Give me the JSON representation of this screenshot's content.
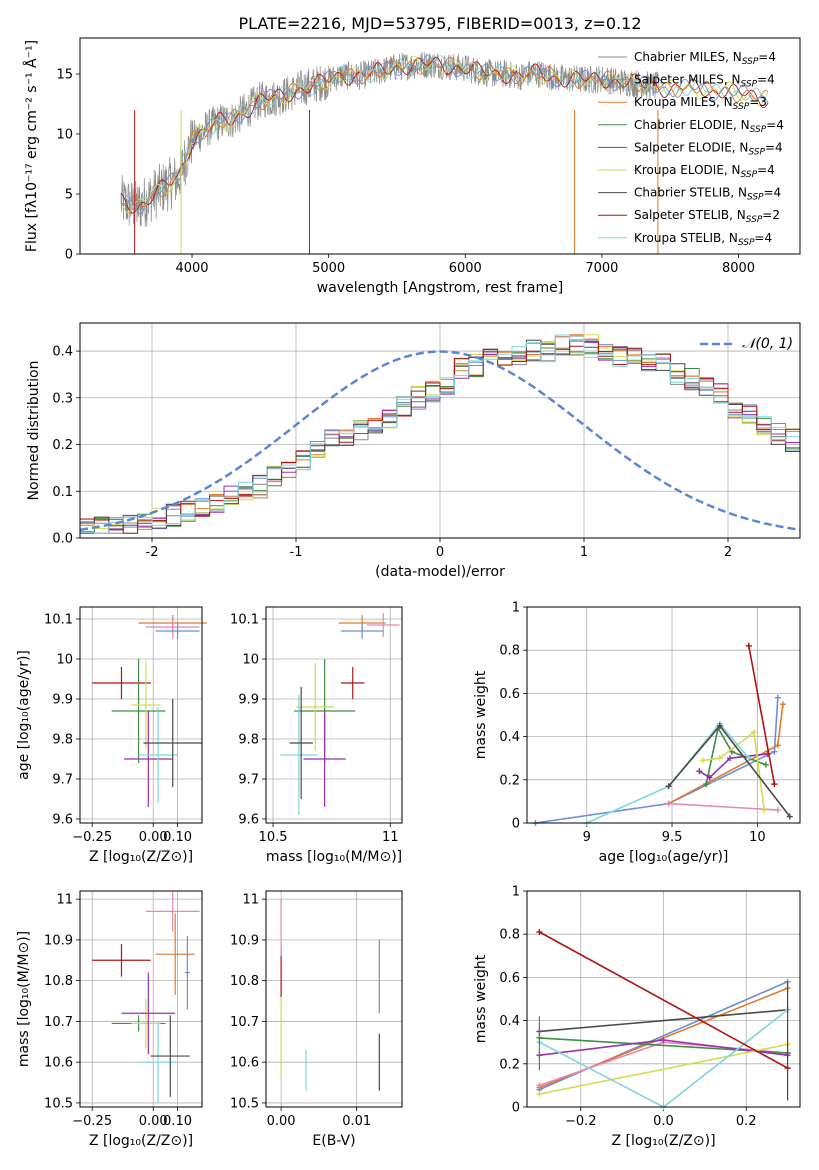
{
  "figure": {
    "title": "PLATE=2216, MJD=53795, FIBERID=0013, z=0.12"
  },
  "colors": {
    "Chabrier MILES": "#8a8a8a",
    "Salpeter MILES": "#6a8fd8",
    "Kroupa MILES": "#e07a2f",
    "Chabrier ELODIE": "#3f8f46",
    "Salpeter ELODIE": "#9a2fb0",
    "Kroupa ELODIE": "#d2dd4f",
    "Chabrier STELIB": "#4a4a4a",
    "Salpeter STELIB": "#b01414",
    "Kroupa STELIB": "#7fd6dc",
    "pink": "#e588b8",
    "normal": "#5b87d2"
  },
  "chart_data": [
    {
      "id": "spectrum",
      "type": "line",
      "title": "PLATE=2216, MJD=53795, FIBERID=0013, z=0.12",
      "xlabel": "wavelength [Angstrom, rest frame]",
      "ylabel": "Flux [fλ10⁻¹⁷ erg cm⁻² s⁻¹ Å⁻¹]",
      "xlim": [
        3180,
        8450
      ],
      "ylim": [
        0,
        18
      ],
      "xticks": [
        4000,
        5000,
        6000,
        7000,
        8000
      ],
      "yticks": [
        0,
        5,
        10,
        15
      ],
      "grid": false,
      "legend_position": "right",
      "legend": [
        {
          "label": "Chabrier MILES, N",
          "sub": "SSP",
          "tail": "=4",
          "color": "#8a8a8a"
        },
        {
          "label": "Salpeter MILES, N",
          "sub": "SSP",
          "tail": "=4",
          "color": "#6a8fd8"
        },
        {
          "label": "Kroupa MILES, N",
          "sub": "SSP",
          "tail": "=3",
          "color": "#e07a2f"
        },
        {
          "label": "Chabrier ELODIE, N",
          "sub": "SSP",
          "tail": "=4",
          "color": "#3f8f46"
        },
        {
          "label": "Salpeter ELODIE, N",
          "sub": "SSP",
          "tail": "=4",
          "color": "#9a2fb0"
        },
        {
          "label": "Kroupa ELODIE, N",
          "sub": "SSP",
          "tail": "=4",
          "color": "#d2dd4f"
        },
        {
          "label": "Chabrier STELIB, N",
          "sub": "SSP",
          "tail": "=4",
          "color": "#4a4a4a"
        },
        {
          "label": "Salpeter STELIB, N",
          "sub": "SSP",
          "tail": "=2",
          "color": "#b01414"
        },
        {
          "label": "Kroupa STELIB, N",
          "sub": "SSP",
          "tail": "=4",
          "color": "#7fd6dc"
        }
      ],
      "continuum": [
        [
          3480,
          4.4
        ],
        [
          3600,
          3.9
        ],
        [
          3700,
          4.8
        ],
        [
          3800,
          5.6
        ],
        [
          3900,
          6.3
        ],
        [
          4000,
          9.5
        ],
        [
          4100,
          10.4
        ],
        [
          4200,
          11.0
        ],
        [
          4300,
          11.2
        ],
        [
          4400,
          12.0
        ],
        [
          4500,
          12.8
        ],
        [
          4600,
          13.0
        ],
        [
          4700,
          13.3
        ],
        [
          4800,
          13.8
        ],
        [
          4900,
          14.1
        ],
        [
          5000,
          14.5
        ],
        [
          5100,
          14.9
        ],
        [
          5200,
          14.8
        ],
        [
          5300,
          15.0
        ],
        [
          5400,
          15.3
        ],
        [
          5500,
          15.6
        ],
        [
          5600,
          15.7
        ],
        [
          5700,
          15.8
        ],
        [
          5800,
          15.8
        ],
        [
          5900,
          15.6
        ],
        [
          6000,
          15.5
        ],
        [
          6100,
          15.2
        ],
        [
          6200,
          15.0
        ],
        [
          6300,
          15.0
        ],
        [
          6400,
          14.8
        ],
        [
          6500,
          15.1
        ],
        [
          6600,
          14.9
        ],
        [
          6700,
          14.6
        ],
        [
          6800,
          14.6
        ],
        [
          6900,
          14.5
        ],
        [
          7000,
          14.6
        ],
        [
          7100,
          14.4
        ],
        [
          7200,
          14.3
        ],
        [
          7300,
          14.1
        ],
        [
          7400,
          14.0
        ],
        [
          7500,
          13.7
        ],
        [
          7600,
          13.9
        ],
        [
          7700,
          13.8
        ],
        [
          7800,
          13.5
        ],
        [
          7900,
          13.7
        ],
        [
          8000,
          13.4
        ],
        [
          8100,
          13.1
        ],
        [
          8200,
          12.9
        ]
      ]
    },
    {
      "id": "residuals",
      "type": "step",
      "xlabel": "(data-model)/error",
      "ylabel": "Normed distribution",
      "xlim": [
        -2.5,
        2.5
      ],
      "ylim": [
        0,
        0.46
      ],
      "xticks": [
        -2,
        -1,
        0,
        1,
        2
      ],
      "yticks": [
        0.0,
        0.1,
        0.2,
        0.3,
        0.4
      ],
      "grid": true,
      "legend": [
        {
          "label": "𝒩(0, 1)",
          "color": "#5b87d2",
          "style": "dashed"
        }
      ],
      "bins": {
        "start": -2.5,
        "width": 0.1
      },
      "histogram": [
        0.02,
        0.022,
        0.025,
        0.03,
        0.04,
        0.045,
        0.05,
        0.06,
        0.07,
        0.08,
        0.09,
        0.1,
        0.11,
        0.13,
        0.15,
        0.17,
        0.19,
        0.21,
        0.22,
        0.23,
        0.24,
        0.26,
        0.28,
        0.3,
        0.31,
        0.33,
        0.35,
        0.36,
        0.37,
        0.38,
        0.38,
        0.39,
        0.39,
        0.4,
        0.4,
        0.4,
        0.39,
        0.38,
        0.38,
        0.37,
        0.36,
        0.34,
        0.33,
        0.32,
        0.3,
        0.28,
        0.26,
        0.24,
        0.22,
        0.21,
        0.2,
        0.18,
        0.17,
        0.15,
        0.13,
        0.11,
        0.1,
        0.09,
        0.08,
        0.06,
        0.05,
        0.04,
        0.035,
        0.03,
        0.025,
        0.022,
        0.02,
        0.02,
        0.02,
        0.02
      ]
    },
    {
      "id": "age_vs_Z",
      "type": "errorbar",
      "xlabel": "Z [log₁₀(Z/Z⊙)]",
      "ylabel": "age  [log₁₀(age/yr)]",
      "xlim": [
        -0.3,
        0.2
      ],
      "ylim": [
        9.59,
        10.13
      ],
      "xticks": [
        -0.25,
        0.0,
        0.1
      ],
      "xticklabels": [
        "−0.25",
        "0.00",
        "0.10"
      ],
      "yticks": [
        9.6,
        9.7,
        9.8,
        9.9,
        10.0,
        10.1
      ],
      "grid": true
    },
    {
      "id": "age_vs_mass",
      "type": "errorbar",
      "xlabel": "mass [log₁₀(M/M⊙)]",
      "ylabel": "",
      "xlim": [
        10.47,
        11.05
      ],
      "ylim": [
        9.59,
        10.13
      ],
      "xticks": [
        10.5,
        11.0
      ],
      "yticks": [
        9.6,
        9.7,
        9.8,
        9.9,
        10.0,
        10.1
      ],
      "grid": true
    },
    {
      "id": "weight_vs_age",
      "type": "line",
      "xlabel": "age  [log₁₀(age/yr)]",
      "ylabel": "mass weight",
      "xlim": [
        8.65,
        10.25
      ],
      "ylim": [
        0,
        1
      ],
      "xticks": [
        9.0,
        9.5,
        10.0
      ],
      "yticks": [
        0.0,
        0.2,
        0.4,
        0.6,
        0.8,
        1.0
      ],
      "grid": true
    },
    {
      "id": "mass_vs_Z",
      "type": "errorbar",
      "xlabel": "Z [log₁₀(Z/Z⊙)]",
      "ylabel": "mass [log₁₀(M/M⊙)]",
      "xlim": [
        -0.3,
        0.2
      ],
      "ylim": [
        10.49,
        11.02
      ],
      "xticks": [
        -0.25,
        0.0,
        0.1
      ],
      "xticklabels": [
        "−0.25",
        "0.00",
        "0.10"
      ],
      "yticks": [
        10.5,
        10.6,
        10.7,
        10.8,
        10.9,
        11.0
      ],
      "grid": true
    },
    {
      "id": "mass_vs_ebv",
      "type": "errorbar",
      "xlabel": "E(B-V)",
      "ylabel": "",
      "xlim": [
        -0.002,
        0.016
      ],
      "ylim": [
        10.49,
        11.02
      ],
      "xticks": [
        0.0,
        0.01
      ],
      "xticklabels": [
        "0.00",
        "0.01"
      ],
      "yticks": [
        10.5,
        10.6,
        10.7,
        10.8,
        10.9,
        11.0
      ],
      "grid": true
    },
    {
      "id": "weight_vs_Z",
      "type": "line",
      "xlabel": "Z [log₁₀(Z/Z⊙)]",
      "ylabel": "mass weight",
      "xlim": [
        -0.33,
        0.33
      ],
      "ylim": [
        0,
        1
      ],
      "xticks": [
        -0.2,
        0.0,
        0.2
      ],
      "xticklabels": [
        "−0.2",
        "0.0",
        "0.2"
      ],
      "yticks": [
        0.0,
        0.2,
        0.4,
        0.6,
        0.8,
        1.0
      ],
      "grid": true
    }
  ]
}
